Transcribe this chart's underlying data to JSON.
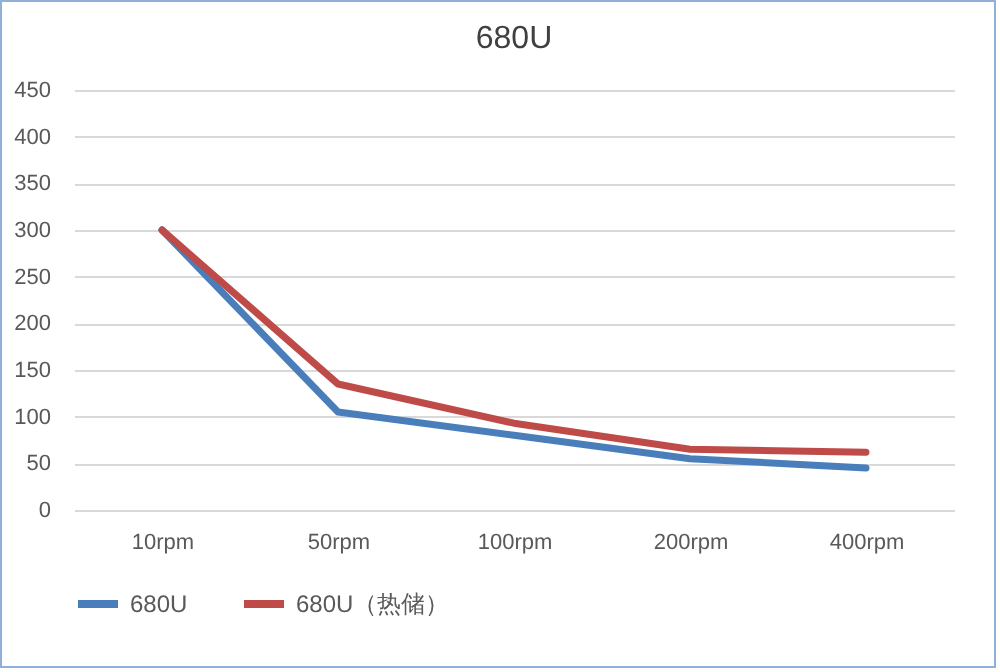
{
  "chart_data": {
    "type": "line",
    "title": "680U",
    "categories": [
      "10rpm",
      "50rpm",
      "100rpm",
      "200rpm",
      "400rpm"
    ],
    "series": [
      {
        "name": "680U",
        "color": "#4a7ebb",
        "values": [
          300,
          105,
          80,
          55,
          45
        ]
      },
      {
        "name": "680U（热储）",
        "color": "#be4b48",
        "values": [
          300,
          135,
          93,
          65,
          62
        ]
      }
    ],
    "ylim": [
      0,
      450
    ],
    "yticks": [
      0,
      50,
      100,
      150,
      200,
      250,
      300,
      350,
      400,
      450
    ],
    "grid": "y",
    "legend": "bottom",
    "marker": "none",
    "line_style": "solid"
  }
}
